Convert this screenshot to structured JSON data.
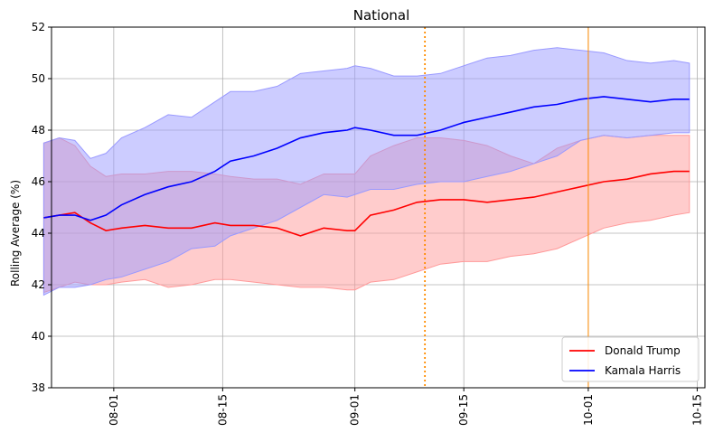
{
  "chart_data": {
    "type": "line",
    "title": "National",
    "xlabel": "",
    "ylabel": "Rolling Average (%)",
    "x_axis": {
      "type": "date",
      "range": [
        "2024-07-24",
        "2024-10-16"
      ],
      "tick_labels": [
        "08-01",
        "08-15",
        "09-01",
        "09-15",
        "10-01",
        "10-15"
      ],
      "tick_dates": [
        "2024-08-01",
        "2024-08-15",
        "2024-09-01",
        "2024-09-15",
        "2024-10-01",
        "2024-10-15"
      ]
    },
    "y_axis": {
      "range": [
        38,
        52
      ],
      "ticks": [
        "38",
        "40",
        "42",
        "44",
        "46",
        "48",
        "50",
        "52"
      ]
    },
    "grid": true,
    "legend_position": "bottom-right",
    "vertical_lines": [
      {
        "date": "2024-09-10",
        "color": "#ff8c00",
        "style": "dotted"
      },
      {
        "date": "2024-10-01",
        "color": "#ff8c00",
        "style": "solid-thin"
      }
    ],
    "series": [
      {
        "name": "Donald Trump",
        "color": "#ff0000",
        "band_color": "#ff9999",
        "points": [
          [
            "2024-07-23",
            44.6,
            41.7,
            47.5
          ],
          [
            "2024-07-25",
            44.7,
            41.9,
            47.7
          ],
          [
            "2024-07-27",
            44.8,
            42.1,
            47.4
          ],
          [
            "2024-07-29",
            44.4,
            42.0,
            46.6
          ],
          [
            "2024-07-31",
            44.1,
            42.0,
            46.2
          ],
          [
            "2024-08-02",
            44.2,
            42.1,
            46.3
          ],
          [
            "2024-08-05",
            44.3,
            42.2,
            46.3
          ],
          [
            "2024-08-08",
            44.2,
            41.9,
            46.4
          ],
          [
            "2024-08-11",
            44.2,
            42.0,
            46.4
          ],
          [
            "2024-08-14",
            44.4,
            42.2,
            46.3
          ],
          [
            "2024-08-16",
            44.3,
            42.2,
            46.2
          ],
          [
            "2024-08-19",
            44.3,
            42.1,
            46.1
          ],
          [
            "2024-08-22",
            44.2,
            42.0,
            46.1
          ],
          [
            "2024-08-25",
            43.9,
            41.9,
            45.9
          ],
          [
            "2024-08-28",
            44.2,
            41.9,
            46.3
          ],
          [
            "2024-08-31",
            44.1,
            41.8,
            46.3
          ],
          [
            "2024-09-01",
            44.1,
            41.8,
            46.3
          ],
          [
            "2024-09-03",
            44.7,
            42.1,
            47.0
          ],
          [
            "2024-09-06",
            44.9,
            42.2,
            47.4
          ],
          [
            "2024-09-09",
            45.2,
            42.5,
            47.7
          ],
          [
            "2024-09-12",
            45.3,
            42.8,
            47.7
          ],
          [
            "2024-09-15",
            45.3,
            42.9,
            47.6
          ],
          [
            "2024-09-18",
            45.2,
            42.9,
            47.4
          ],
          [
            "2024-09-21",
            45.3,
            43.1,
            47.0
          ],
          [
            "2024-09-24",
            45.4,
            43.2,
            46.7
          ],
          [
            "2024-09-27",
            45.6,
            43.4,
            47.3
          ],
          [
            "2024-09-30",
            45.8,
            43.8,
            47.6
          ],
          [
            "2024-10-03",
            46.0,
            44.2,
            47.8
          ],
          [
            "2024-10-06",
            46.1,
            44.4,
            47.7
          ],
          [
            "2024-10-09",
            46.3,
            44.5,
            47.8
          ],
          [
            "2024-10-12",
            46.4,
            44.7,
            47.8
          ],
          [
            "2024-10-14",
            46.4,
            44.8,
            47.8
          ]
        ]
      },
      {
        "name": "Kamala Harris",
        "color": "#0000ff",
        "band_color": "#9999ff",
        "points": [
          [
            "2024-07-23",
            44.6,
            41.6,
            47.5
          ],
          [
            "2024-07-25",
            44.7,
            41.9,
            47.7
          ],
          [
            "2024-07-27",
            44.7,
            41.9,
            47.6
          ],
          [
            "2024-07-29",
            44.5,
            42.0,
            46.9
          ],
          [
            "2024-07-31",
            44.7,
            42.2,
            47.1
          ],
          [
            "2024-08-02",
            45.1,
            42.3,
            47.7
          ],
          [
            "2024-08-05",
            45.5,
            42.6,
            48.1
          ],
          [
            "2024-08-08",
            45.8,
            42.9,
            48.6
          ],
          [
            "2024-08-11",
            46.0,
            43.4,
            48.5
          ],
          [
            "2024-08-14",
            46.4,
            43.5,
            49.1
          ],
          [
            "2024-08-16",
            46.8,
            43.9,
            49.5
          ],
          [
            "2024-08-19",
            47.0,
            44.2,
            49.5
          ],
          [
            "2024-08-22",
            47.3,
            44.5,
            49.7
          ],
          [
            "2024-08-25",
            47.7,
            45.0,
            50.2
          ],
          [
            "2024-08-28",
            47.9,
            45.5,
            50.3
          ],
          [
            "2024-08-31",
            48.0,
            45.4,
            50.4
          ],
          [
            "2024-09-01",
            48.1,
            45.5,
            50.5
          ],
          [
            "2024-09-03",
            48.0,
            45.7,
            50.4
          ],
          [
            "2024-09-06",
            47.8,
            45.7,
            50.1
          ],
          [
            "2024-09-09",
            47.8,
            45.9,
            50.1
          ],
          [
            "2024-09-12",
            48.0,
            46.0,
            50.2
          ],
          [
            "2024-09-15",
            48.3,
            46.0,
            50.5
          ],
          [
            "2024-09-18",
            48.5,
            46.2,
            50.8
          ],
          [
            "2024-09-21",
            48.7,
            46.4,
            50.9
          ],
          [
            "2024-09-24",
            48.9,
            46.7,
            51.1
          ],
          [
            "2024-09-27",
            49.0,
            47.0,
            51.2
          ],
          [
            "2024-09-30",
            49.2,
            47.6,
            51.1
          ],
          [
            "2024-10-03",
            49.3,
            47.8,
            51.0
          ],
          [
            "2024-10-06",
            49.2,
            47.7,
            50.7
          ],
          [
            "2024-10-09",
            49.1,
            47.8,
            50.6
          ],
          [
            "2024-10-12",
            49.2,
            47.9,
            50.7
          ],
          [
            "2024-10-14",
            49.2,
            47.9,
            50.6
          ]
        ]
      }
    ]
  }
}
